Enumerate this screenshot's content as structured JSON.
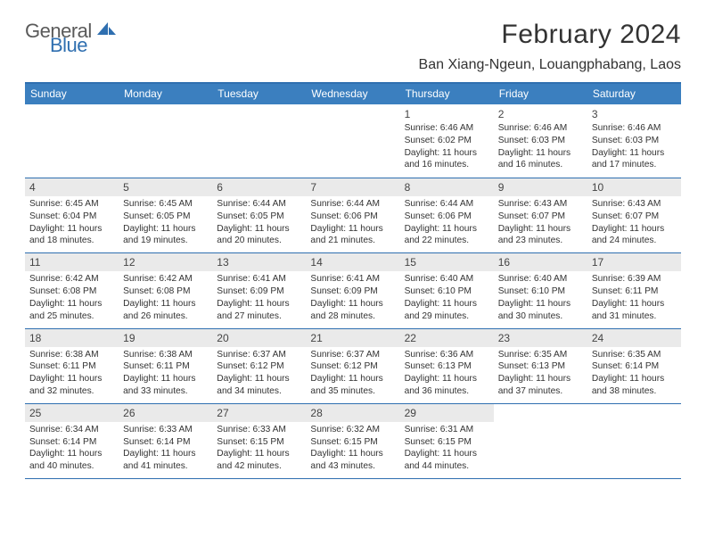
{
  "logo": {
    "word1": "General",
    "word2": "Blue",
    "accent_color": "#2f6fb0",
    "gray_color": "#5a5a5a"
  },
  "title": "February 2024",
  "location": "Ban Xiang-Ngeun, Louangphabang, Laos",
  "weekdays": [
    "Sunday",
    "Monday",
    "Tuesday",
    "Wednesday",
    "Thursday",
    "Friday",
    "Saturday"
  ],
  "header_bg": "#3b7fbf",
  "border_color": "#2f6fb0",
  "shade_color": "#eaeaea",
  "weeks": [
    {
      "shaded": false,
      "days": [
        null,
        null,
        null,
        null,
        {
          "n": "1",
          "sunrise": "Sunrise: 6:46 AM",
          "sunset": "Sunset: 6:02 PM",
          "day1": "Daylight: 11 hours",
          "day2": "and 16 minutes."
        },
        {
          "n": "2",
          "sunrise": "Sunrise: 6:46 AM",
          "sunset": "Sunset: 6:03 PM",
          "day1": "Daylight: 11 hours",
          "day2": "and 16 minutes."
        },
        {
          "n": "3",
          "sunrise": "Sunrise: 6:46 AM",
          "sunset": "Sunset: 6:03 PM",
          "day1": "Daylight: 11 hours",
          "day2": "and 17 minutes."
        }
      ]
    },
    {
      "shaded": true,
      "days": [
        {
          "n": "4",
          "sunrise": "Sunrise: 6:45 AM",
          "sunset": "Sunset: 6:04 PM",
          "day1": "Daylight: 11 hours",
          "day2": "and 18 minutes."
        },
        {
          "n": "5",
          "sunrise": "Sunrise: 6:45 AM",
          "sunset": "Sunset: 6:05 PM",
          "day1": "Daylight: 11 hours",
          "day2": "and 19 minutes."
        },
        {
          "n": "6",
          "sunrise": "Sunrise: 6:44 AM",
          "sunset": "Sunset: 6:05 PM",
          "day1": "Daylight: 11 hours",
          "day2": "and 20 minutes."
        },
        {
          "n": "7",
          "sunrise": "Sunrise: 6:44 AM",
          "sunset": "Sunset: 6:06 PM",
          "day1": "Daylight: 11 hours",
          "day2": "and 21 minutes."
        },
        {
          "n": "8",
          "sunrise": "Sunrise: 6:44 AM",
          "sunset": "Sunset: 6:06 PM",
          "day1": "Daylight: 11 hours",
          "day2": "and 22 minutes."
        },
        {
          "n": "9",
          "sunrise": "Sunrise: 6:43 AM",
          "sunset": "Sunset: 6:07 PM",
          "day1": "Daylight: 11 hours",
          "day2": "and 23 minutes."
        },
        {
          "n": "10",
          "sunrise": "Sunrise: 6:43 AM",
          "sunset": "Sunset: 6:07 PM",
          "day1": "Daylight: 11 hours",
          "day2": "and 24 minutes."
        }
      ]
    },
    {
      "shaded": true,
      "days": [
        {
          "n": "11",
          "sunrise": "Sunrise: 6:42 AM",
          "sunset": "Sunset: 6:08 PM",
          "day1": "Daylight: 11 hours",
          "day2": "and 25 minutes."
        },
        {
          "n": "12",
          "sunrise": "Sunrise: 6:42 AM",
          "sunset": "Sunset: 6:08 PM",
          "day1": "Daylight: 11 hours",
          "day2": "and 26 minutes."
        },
        {
          "n": "13",
          "sunrise": "Sunrise: 6:41 AM",
          "sunset": "Sunset: 6:09 PM",
          "day1": "Daylight: 11 hours",
          "day2": "and 27 minutes."
        },
        {
          "n": "14",
          "sunrise": "Sunrise: 6:41 AM",
          "sunset": "Sunset: 6:09 PM",
          "day1": "Daylight: 11 hours",
          "day2": "and 28 minutes."
        },
        {
          "n": "15",
          "sunrise": "Sunrise: 6:40 AM",
          "sunset": "Sunset: 6:10 PM",
          "day1": "Daylight: 11 hours",
          "day2": "and 29 minutes."
        },
        {
          "n": "16",
          "sunrise": "Sunrise: 6:40 AM",
          "sunset": "Sunset: 6:10 PM",
          "day1": "Daylight: 11 hours",
          "day2": "and 30 minutes."
        },
        {
          "n": "17",
          "sunrise": "Sunrise: 6:39 AM",
          "sunset": "Sunset: 6:11 PM",
          "day1": "Daylight: 11 hours",
          "day2": "and 31 minutes."
        }
      ]
    },
    {
      "shaded": true,
      "days": [
        {
          "n": "18",
          "sunrise": "Sunrise: 6:38 AM",
          "sunset": "Sunset: 6:11 PM",
          "day1": "Daylight: 11 hours",
          "day2": "and 32 minutes."
        },
        {
          "n": "19",
          "sunrise": "Sunrise: 6:38 AM",
          "sunset": "Sunset: 6:11 PM",
          "day1": "Daylight: 11 hours",
          "day2": "and 33 minutes."
        },
        {
          "n": "20",
          "sunrise": "Sunrise: 6:37 AM",
          "sunset": "Sunset: 6:12 PM",
          "day1": "Daylight: 11 hours",
          "day2": "and 34 minutes."
        },
        {
          "n": "21",
          "sunrise": "Sunrise: 6:37 AM",
          "sunset": "Sunset: 6:12 PM",
          "day1": "Daylight: 11 hours",
          "day2": "and 35 minutes."
        },
        {
          "n": "22",
          "sunrise": "Sunrise: 6:36 AM",
          "sunset": "Sunset: 6:13 PM",
          "day1": "Daylight: 11 hours",
          "day2": "and 36 minutes."
        },
        {
          "n": "23",
          "sunrise": "Sunrise: 6:35 AM",
          "sunset": "Sunset: 6:13 PM",
          "day1": "Daylight: 11 hours",
          "day2": "and 37 minutes."
        },
        {
          "n": "24",
          "sunrise": "Sunrise: 6:35 AM",
          "sunset": "Sunset: 6:14 PM",
          "day1": "Daylight: 11 hours",
          "day2": "and 38 minutes."
        }
      ]
    },
    {
      "shaded": true,
      "days": [
        {
          "n": "25",
          "sunrise": "Sunrise: 6:34 AM",
          "sunset": "Sunset: 6:14 PM",
          "day1": "Daylight: 11 hours",
          "day2": "and 40 minutes."
        },
        {
          "n": "26",
          "sunrise": "Sunrise: 6:33 AM",
          "sunset": "Sunset: 6:14 PM",
          "day1": "Daylight: 11 hours",
          "day2": "and 41 minutes."
        },
        {
          "n": "27",
          "sunrise": "Sunrise: 6:33 AM",
          "sunset": "Sunset: 6:15 PM",
          "day1": "Daylight: 11 hours",
          "day2": "and 42 minutes."
        },
        {
          "n": "28",
          "sunrise": "Sunrise: 6:32 AM",
          "sunset": "Sunset: 6:15 PM",
          "day1": "Daylight: 11 hours",
          "day2": "and 43 minutes."
        },
        {
          "n": "29",
          "sunrise": "Sunrise: 6:31 AM",
          "sunset": "Sunset: 6:15 PM",
          "day1": "Daylight: 11 hours",
          "day2": "and 44 minutes."
        },
        null,
        null
      ]
    }
  ]
}
